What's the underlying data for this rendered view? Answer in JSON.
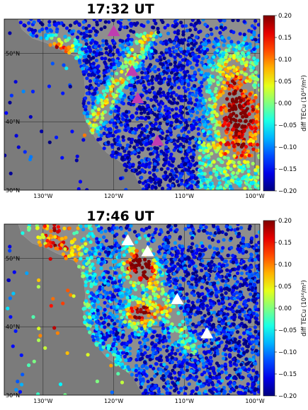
{
  "panels": [
    {
      "title": "17:32 UT",
      "colorbar_label": "diff TECu (10¹⁶/m²)",
      "colorbar_ticks": [
        "0.20",
        "0.15",
        "0.10",
        "0.05",
        "0.00",
        "−0.05",
        "−0.10",
        "−0.15",
        "−0.20"
      ],
      "lon_ticks": [
        "130°W",
        "120°W",
        "110°W",
        "100°W"
      ],
      "lat_ticks": [
        "50°N",
        "40°N",
        "30°N"
      ],
      "marker_color": "#c03cb0",
      "markers": [
        {
          "lon": -120.0,
          "lat": 53.2
        },
        {
          "lon": -117.4,
          "lat": 47.4
        },
        {
          "lon": -116.6,
          "lat": 43.4
        },
        {
          "lon": -113.8,
          "lat": 37.2
        }
      ]
    },
    {
      "title": "17:46 UT",
      "colorbar_label": "diff TECu (10¹⁶/m²)",
      "colorbar_ticks": [
        "0.20",
        "0.15",
        "0.10",
        "0.05",
        "0.00",
        "−0.05",
        "−0.10",
        "−0.15",
        "−0.20"
      ],
      "lon_ticks": [
        "130°W",
        "120°W",
        "110°W",
        "100°W"
      ],
      "lat_ticks": [
        "50°N",
        "40°N",
        "30°N"
      ],
      "marker_color": "#ffffff",
      "markers": [
        {
          "lon": -118.0,
          "lat": 52.6
        },
        {
          "lon": -115.2,
          "lat": 51.0
        },
        {
          "lon": -111.0,
          "lat": 44.0
        },
        {
          "lon": -106.8,
          "lat": 39.0
        }
      ]
    }
  ],
  "map": {
    "ocean_color": "#7b7b7b",
    "land_color": "#8e8e8e"
  }
}
